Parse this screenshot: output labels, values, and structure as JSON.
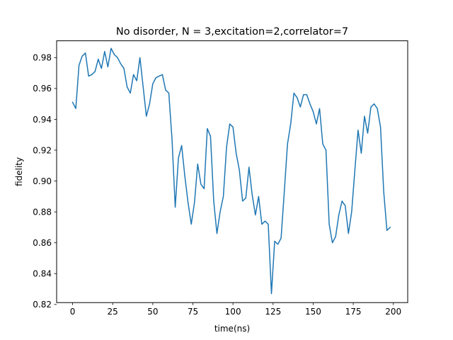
{
  "chart_data": {
    "type": "line",
    "title": "No disorder, N =  3,excitation=2,correlator=7",
    "xlabel": "time(ns)",
    "ylabel": "fidelity",
    "xlim": [
      -9.95,
      208.95
    ],
    "ylim": [
      0.8212,
      0.9909
    ],
    "xticks": [
      0,
      25,
      50,
      75,
      100,
      125,
      150,
      175,
      200
    ],
    "xtick_labels": [
      "0",
      "25",
      "50",
      "75",
      "100",
      "125",
      "150",
      "175",
      "200"
    ],
    "yticks": [
      0.82,
      0.84,
      0.86,
      0.88,
      0.9,
      0.92,
      0.94,
      0.96,
      0.98
    ],
    "ytick_labels": [
      "0.82",
      "0.84",
      "0.86",
      "0.88",
      "0.90",
      "0.92",
      "0.94",
      "0.96",
      "0.98"
    ],
    "grid": false,
    "series": [
      {
        "color": "#1f77b4",
        "x": [
          0,
          2,
          4,
          6,
          8,
          10,
          12,
          14,
          16,
          18,
          20,
          22,
          24,
          26,
          28,
          30,
          32,
          34,
          36,
          38,
          40,
          42,
          44,
          46,
          48,
          50,
          52,
          54,
          56,
          58,
          60,
          62,
          64,
          66,
          68,
          70,
          72,
          74,
          76,
          78,
          80,
          82,
          84,
          86,
          88,
          90,
          92,
          94,
          96,
          98,
          100,
          102,
          104,
          106,
          108,
          110,
          112,
          114,
          116,
          118,
          120,
          122,
          124,
          126,
          128,
          130,
          132,
          134,
          136,
          138,
          140,
          142,
          144,
          146,
          148,
          150,
          152,
          154,
          156,
          158,
          160,
          162,
          164,
          166,
          168,
          170,
          172,
          174,
          176,
          178,
          180,
          182,
          184,
          186,
          188,
          190,
          192,
          194,
          196,
          198
        ],
        "y": [
          0.951,
          0.947,
          0.975,
          0.981,
          0.983,
          0.968,
          0.969,
          0.971,
          0.979,
          0.973,
          0.984,
          0.974,
          0.986,
          0.982,
          0.98,
          0.976,
          0.973,
          0.961,
          0.957,
          0.969,
          0.965,
          0.98,
          0.961,
          0.942,
          0.95,
          0.963,
          0.967,
          0.968,
          0.969,
          0.959,
          0.957,
          0.927,
          0.883,
          0.915,
          0.923,
          0.903,
          0.886,
          0.872,
          0.886,
          0.911,
          0.898,
          0.895,
          0.934,
          0.929,
          0.887,
          0.866,
          0.88,
          0.89,
          0.922,
          0.937,
          0.935,
          0.918,
          0.907,
          0.887,
          0.889,
          0.909,
          0.891,
          0.878,
          0.89,
          0.872,
          0.874,
          0.872,
          0.827,
          0.861,
          0.859,
          0.863,
          0.893,
          0.924,
          0.937,
          0.957,
          0.954,
          0.948,
          0.956,
          0.956,
          0.95,
          0.945,
          0.937,
          0.947,
          0.924,
          0.92,
          0.872,
          0.86,
          0.864,
          0.878,
          0.887,
          0.884,
          0.866,
          0.88,
          0.907,
          0.933,
          0.918,
          0.942,
          0.931,
          0.948,
          0.95,
          0.947,
          0.935,
          0.893,
          0.868,
          0.87
        ]
      }
    ]
  }
}
